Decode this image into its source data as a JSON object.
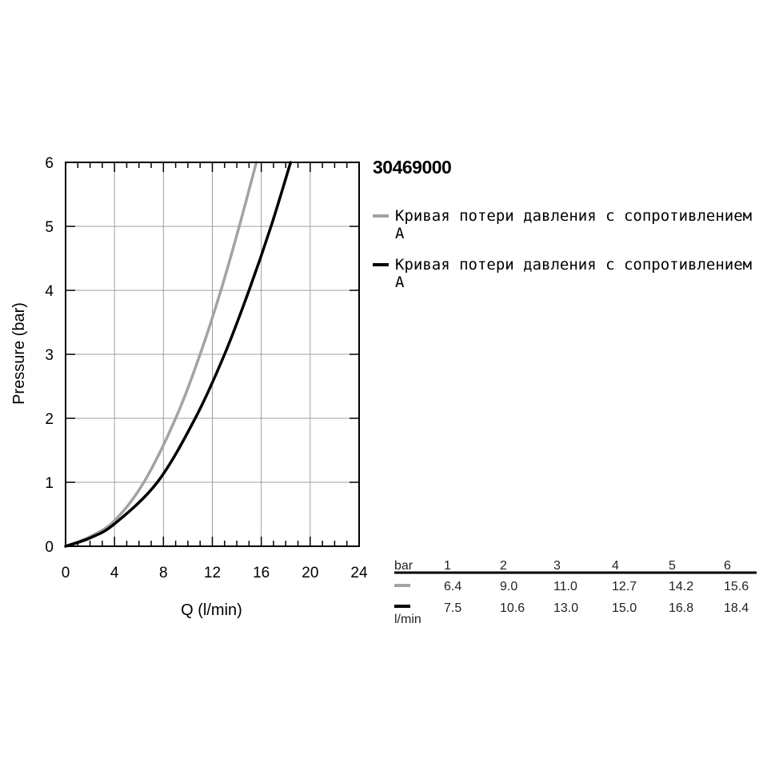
{
  "chart_data": {
    "type": "line",
    "title": "30469000",
    "xlabel": "Q (l/min)",
    "ylabel": "Pressure (bar)",
    "xlim": [
      0,
      24
    ],
    "ylim": [
      0,
      6
    ],
    "x_ticks": [
      "0",
      "4",
      "8",
      "12",
      "16",
      "20",
      "24"
    ],
    "y_ticks": [
      "0",
      "1",
      "2",
      "3",
      "4",
      "5",
      "6"
    ],
    "grid": true,
    "legend_position": "right",
    "series": [
      {
        "name": "Кривая потери давления с сопротивлением A",
        "color": "#a3a3a3",
        "x": [
          0,
          2,
          4,
          6.4,
          9.0,
          11.0,
          12.7,
          14.2,
          15.6
        ],
        "y": [
          0,
          0.15,
          0.4,
          1,
          2,
          3,
          4,
          5,
          6
        ]
      },
      {
        "name": "Кривая потери давления с сопротивлением A",
        "color": "#000000",
        "x": [
          0,
          2,
          4,
          7.5,
          10.6,
          13.0,
          15.0,
          16.8,
          18.4
        ],
        "y": [
          0,
          0.13,
          0.35,
          1,
          2,
          3,
          4,
          5,
          6
        ]
      }
    ]
  },
  "table": {
    "bar_label": "bar",
    "unit_label": "l/min",
    "headers": [
      "1",
      "2",
      "3",
      "4",
      "5",
      "6"
    ],
    "rows": [
      {
        "color": "#a3a3a3",
        "values": [
          "6.4",
          "9.0",
          "11.0",
          "12.7",
          "14.2",
          "15.6"
        ]
      },
      {
        "color": "#000000",
        "values": [
          "7.5",
          "10.6",
          "13.0",
          "15.0",
          "16.8",
          "18.4"
        ]
      }
    ]
  }
}
